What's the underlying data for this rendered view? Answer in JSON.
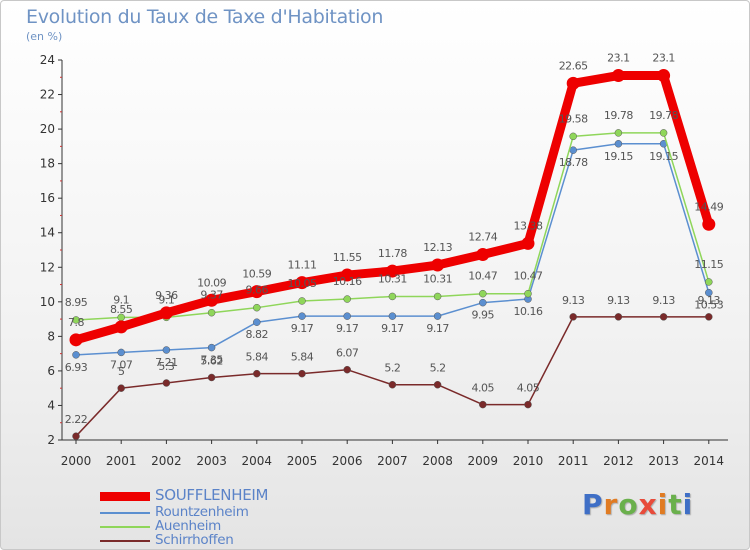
{
  "header": {
    "title": "Evolution du Taux de Taxe d'Habitation",
    "subtitle": "(en %)"
  },
  "brand": {
    "text": "Proxiti",
    "letter_colors": [
      "#3f6fc6",
      "#e07b22",
      "#6ab04c",
      "#e84b3a",
      "#e07b22",
      "#6ab04c",
      "#3f6fc6"
    ]
  },
  "chart_data": {
    "type": "line",
    "title": "Evolution du Taux de Taxe d'Habitation",
    "subtitle": "(en %)",
    "xlabel": "",
    "ylabel": "",
    "x": [
      "2000",
      "2001",
      "2002",
      "2003",
      "2004",
      "2005",
      "2006",
      "2007",
      "2008",
      "2009",
      "2010",
      "2011",
      "2012",
      "2013",
      "2014"
    ],
    "ylim": [
      2,
      24
    ],
    "yticks": [
      2,
      4,
      6,
      8,
      10,
      12,
      14,
      16,
      18,
      20,
      22,
      24
    ],
    "grid": false,
    "legend_position": "bottom-left",
    "series": [
      {
        "name": "SOUFFLENHEIM",
        "color": "#ee0000",
        "emphasis": true,
        "values": [
          7.8,
          8.55,
          9.36,
          10.09,
          10.59,
          11.11,
          11.55,
          11.78,
          12.13,
          12.74,
          13.38,
          22.65,
          23.1,
          23.1,
          14.49
        ],
        "labels": [
          "7.8",
          "8.55",
          "9.36",
          "10.09",
          "10.59",
          "11.11",
          "11.55",
          "11.78",
          "12.13",
          "12.74",
          "13.38",
          "22.65",
          "23.1",
          "23.1",
          "14.49"
        ]
      },
      {
        "name": "Rountzenheim",
        "color": "#5b8fd0",
        "values": [
          6.93,
          7.07,
          7.21,
          7.35,
          8.82,
          9.17,
          9.17,
          9.17,
          9.17,
          9.95,
          10.16,
          18.78,
          19.15,
          19.15,
          10.53
        ],
        "labels": [
          "6.93",
          "7.07",
          "7.21",
          "7.35",
          "8.82",
          "9.17",
          "9.17",
          "9.17",
          "9.17",
          "9.95",
          "10.16",
          "18.78",
          "19.15",
          "19.15",
          "10.53"
        ]
      },
      {
        "name": "Auenheim",
        "color": "#8fd65a",
        "values": [
          8.95,
          9.1,
          9.1,
          9.37,
          9.66,
          10.05,
          10.16,
          10.31,
          10.31,
          10.47,
          10.47,
          19.58,
          19.78,
          19.78,
          11.15
        ],
        "labels": [
          "8.95",
          "9.1",
          "9.1",
          "9.37",
          "9.66",
          "10.05",
          "10.16",
          "10.31",
          "10.31",
          "10.47",
          "10.47",
          "19.58",
          "19.78",
          "19.78",
          "11.15"
        ]
      },
      {
        "name": "Schirrhoffen",
        "color": "#7a2a2a",
        "values": [
          2.22,
          5,
          5.3,
          5.62,
          5.84,
          5.84,
          6.07,
          5.2,
          5.2,
          4.05,
          4.05,
          9.13,
          9.13,
          9.13,
          9.13
        ],
        "labels": [
          "2.22",
          "5",
          "5.3",
          "5.62",
          "5.84",
          "5.84",
          "6.07",
          "5.2",
          "5.2",
          "4.05",
          "4.05",
          "9.13",
          "9.13",
          "9.13",
          "9.13"
        ]
      }
    ]
  }
}
